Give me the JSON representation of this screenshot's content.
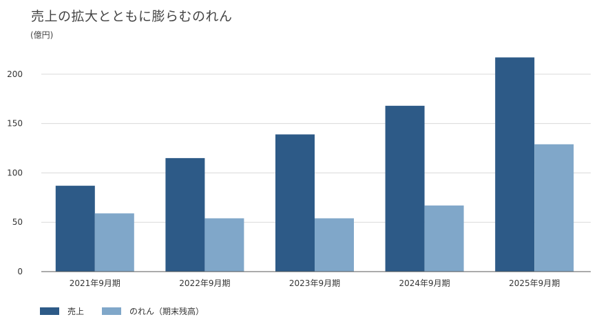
{
  "chart_data": {
    "type": "bar",
    "title": "売上の拡大とともに膨らむのれん",
    "unit_label": "(億円)",
    "categories": [
      "2021年9月期",
      "2022年9月期",
      "2023年9月期",
      "2024年9月期",
      "2025年9月期"
    ],
    "series": [
      {
        "name": "売上",
        "color": "#2d5a87",
        "values": [
          87,
          115,
          139,
          168,
          217
        ]
      },
      {
        "name": "のれん（期末残高）",
        "color": "#80a7c9",
        "values": [
          59,
          54,
          54,
          67,
          129
        ]
      }
    ],
    "ylim": [
      0,
      225
    ],
    "yticks": [
      0,
      50,
      100,
      150,
      200
    ],
    "grid": true,
    "legend_position": "bottom-left"
  }
}
